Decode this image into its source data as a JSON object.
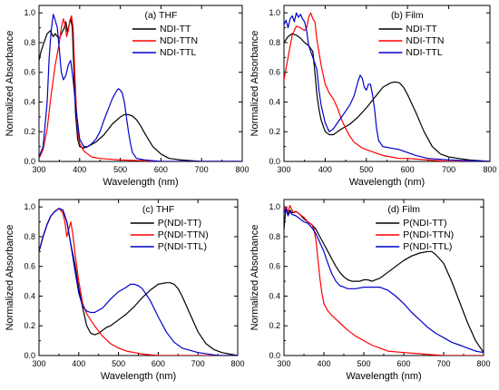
{
  "chart_data": [
    {
      "type": "line",
      "panel_label": "(a) THF",
      "xlabel": "Wavelength (nm)",
      "ylabel": "Normalized Absorbance",
      "xlim": [
        300,
        800
      ],
      "ylim": [
        0.0,
        1.05
      ],
      "xticks": [
        300,
        400,
        500,
        600,
        700,
        800
      ],
      "yticks": [
        0.0,
        0.2,
        0.4,
        0.6,
        0.8,
        1.0
      ],
      "legend_position": "top-right",
      "series": [
        {
          "name": "NDI-TT",
          "color": "#000000",
          "x": [
            300,
            305,
            312,
            320,
            328,
            335,
            340,
            345,
            350,
            357,
            362,
            366,
            370,
            374,
            378,
            382,
            386,
            390,
            395,
            400,
            410,
            420,
            440,
            460,
            480,
            500,
            510,
            520,
            530,
            540,
            550,
            560,
            580,
            600,
            620,
            650,
            700,
            750,
            800
          ],
          "y": [
            0.68,
            0.74,
            0.8,
            0.86,
            0.88,
            0.84,
            0.86,
            0.84,
            0.83,
            0.87,
            0.9,
            0.94,
            0.87,
            0.92,
            0.96,
            0.9,
            0.6,
            0.32,
            0.15,
            0.1,
            0.09,
            0.1,
            0.13,
            0.18,
            0.25,
            0.3,
            0.315,
            0.315,
            0.305,
            0.28,
            0.24,
            0.19,
            0.1,
            0.05,
            0.02,
            0.01,
            0.0,
            0.0,
            0.0
          ]
        },
        {
          "name": "NDI-TTN",
          "color": "#ff0000",
          "x": [
            300,
            310,
            320,
            330,
            340,
            350,
            355,
            360,
            364,
            368,
            372,
            376,
            380,
            384,
            388,
            392,
            396,
            400,
            410,
            420,
            430,
            450,
            500,
            600,
            700,
            800
          ],
          "y": [
            0.02,
            0.08,
            0.22,
            0.45,
            0.65,
            0.8,
            0.9,
            0.96,
            0.92,
            0.84,
            0.88,
            0.95,
            0.98,
            0.9,
            0.6,
            0.35,
            0.2,
            0.12,
            0.07,
            0.05,
            0.03,
            0.02,
            0.01,
            0.0,
            0.0,
            0.0
          ]
        },
        {
          "name": "NDI-TTL",
          "color": "#0000cc",
          "x": [
            300,
            310,
            320,
            325,
            330,
            335,
            340,
            345,
            350,
            355,
            360,
            366,
            372,
            378,
            384,
            390,
            400,
            410,
            420,
            430,
            440,
            450,
            460,
            470,
            480,
            490,
            495,
            500,
            505,
            510,
            515,
            520,
            525,
            530,
            540,
            560,
            600,
            700,
            800
          ],
          "y": [
            0.03,
            0.1,
            0.4,
            0.7,
            0.88,
            0.99,
            0.95,
            0.9,
            0.75,
            0.6,
            0.55,
            0.58,
            0.65,
            0.68,
            0.55,
            0.38,
            0.15,
            0.1,
            0.1,
            0.12,
            0.15,
            0.2,
            0.28,
            0.35,
            0.42,
            0.47,
            0.49,
            0.48,
            0.46,
            0.4,
            0.3,
            0.2,
            0.12,
            0.06,
            0.02,
            0.01,
            0.0,
            0.0,
            0.0
          ]
        }
      ]
    },
    {
      "type": "line",
      "panel_label": "(b) Film",
      "xlabel": "Wavelength (nm)",
      "ylabel": "Normalized Absorbance",
      "xlim": [
        300,
        800
      ],
      "ylim": [
        0.0,
        1.05
      ],
      "xticks": [
        300,
        400,
        500,
        600,
        700,
        800
      ],
      "yticks": [
        0.0,
        0.2,
        0.4,
        0.6,
        0.8,
        1.0
      ],
      "legend_position": "top-right",
      "series": [
        {
          "name": "NDI-TT",
          "color": "#000000",
          "x": [
            300,
            310,
            320,
            330,
            340,
            350,
            360,
            370,
            375,
            380,
            385,
            390,
            400,
            410,
            420,
            430,
            440,
            460,
            480,
            500,
            520,
            540,
            560,
            570,
            580,
            590,
            600,
            620,
            640,
            660,
            680,
            700,
            750,
            800
          ],
          "y": [
            0.8,
            0.84,
            0.86,
            0.85,
            0.83,
            0.8,
            0.78,
            0.74,
            0.6,
            0.45,
            0.35,
            0.28,
            0.2,
            0.18,
            0.18,
            0.2,
            0.22,
            0.25,
            0.3,
            0.36,
            0.43,
            0.5,
            0.53,
            0.535,
            0.53,
            0.5,
            0.45,
            0.33,
            0.2,
            0.1,
            0.05,
            0.03,
            0.01,
            0.0
          ]
        },
        {
          "name": "NDI-TTN",
          "color": "#ff0000",
          "x": [
            300,
            310,
            320,
            330,
            340,
            350,
            355,
            360,
            365,
            370,
            375,
            380,
            390,
            400,
            410,
            420,
            430,
            440,
            450,
            460,
            470,
            480,
            490,
            500,
            520,
            540,
            560,
            580,
            600,
            650,
            700,
            800
          ],
          "y": [
            0.55,
            0.7,
            0.85,
            0.91,
            0.9,
            0.88,
            0.9,
            0.97,
            1.0,
            0.96,
            0.94,
            0.82,
            0.65,
            0.52,
            0.46,
            0.42,
            0.36,
            0.28,
            0.22,
            0.17,
            0.13,
            0.11,
            0.09,
            0.08,
            0.06,
            0.04,
            0.03,
            0.02,
            0.02,
            0.01,
            0.0,
            0.0
          ]
        },
        {
          "name": "NDI-TTL",
          "color": "#0000cc",
          "x": [
            300,
            305,
            310,
            315,
            320,
            325,
            330,
            335,
            340,
            345,
            350,
            355,
            360,
            365,
            370,
            375,
            380,
            385,
            390,
            400,
            410,
            420,
            430,
            440,
            450,
            460,
            470,
            480,
            485,
            490,
            495,
            500,
            505,
            510,
            515,
            520,
            525,
            530,
            540,
            560,
            580,
            600,
            620,
            650,
            700,
            800
          ],
          "y": [
            0.92,
            0.95,
            0.9,
            0.96,
            0.98,
            0.94,
            1.0,
            0.97,
            0.99,
            0.96,
            0.94,
            0.88,
            0.78,
            0.74,
            0.7,
            0.66,
            0.62,
            0.48,
            0.38,
            0.26,
            0.2,
            0.22,
            0.26,
            0.3,
            0.34,
            0.38,
            0.44,
            0.54,
            0.58,
            0.56,
            0.5,
            0.48,
            0.52,
            0.52,
            0.45,
            0.35,
            0.22,
            0.14,
            0.1,
            0.09,
            0.08,
            0.06,
            0.04,
            0.02,
            0.01,
            0.0
          ]
        }
      ]
    },
    {
      "type": "line",
      "panel_label": "(c) THF",
      "xlabel": "Wavelength (nm)",
      "ylabel": "Normalized Absorbance",
      "xlim": [
        300,
        800
      ],
      "ylim": [
        0.0,
        1.05
      ],
      "xticks": [
        300,
        400,
        500,
        600,
        700,
        800
      ],
      "yticks": [
        0.0,
        0.2,
        0.4,
        0.6,
        0.8,
        1.0
      ],
      "legend_position": "top-right",
      "series": [
        {
          "name": "P(NDI-TT)",
          "color": "#000000",
          "x": [
            300,
            310,
            320,
            330,
            340,
            350,
            360,
            370,
            380,
            390,
            400,
            410,
            420,
            430,
            440,
            450,
            460,
            470,
            480,
            500,
            520,
            540,
            560,
            580,
            600,
            620,
            630,
            640,
            650,
            660,
            680,
            700,
            720,
            740,
            760,
            780,
            800
          ],
          "y": [
            0.7,
            0.8,
            0.88,
            0.94,
            0.97,
            0.99,
            0.98,
            0.9,
            0.75,
            0.62,
            0.45,
            0.32,
            0.2,
            0.15,
            0.14,
            0.15,
            0.17,
            0.19,
            0.2,
            0.24,
            0.28,
            0.33,
            0.39,
            0.44,
            0.48,
            0.49,
            0.49,
            0.48,
            0.45,
            0.4,
            0.28,
            0.16,
            0.08,
            0.04,
            0.02,
            0.01,
            0.0
          ]
        },
        {
          "name": "P(NDI-TTN)",
          "color": "#ff0000",
          "x": [
            300,
            310,
            320,
            330,
            340,
            350,
            360,
            365,
            370,
            375,
            380,
            385,
            390,
            400,
            410,
            420,
            430,
            440,
            460,
            480,
            500,
            520,
            540,
            560,
            600,
            700,
            800
          ],
          "y": [
            0.7,
            0.8,
            0.88,
            0.94,
            0.97,
            0.99,
            0.96,
            0.9,
            0.8,
            0.85,
            0.9,
            0.82,
            0.7,
            0.5,
            0.35,
            0.28,
            0.24,
            0.2,
            0.13,
            0.08,
            0.05,
            0.03,
            0.02,
            0.01,
            0.0,
            0.0,
            0.0
          ]
        },
        {
          "name": "P(NDI-TTL)",
          "color": "#0000cc",
          "x": [
            300,
            310,
            320,
            330,
            340,
            350,
            360,
            370,
            380,
            390,
            400,
            410,
            420,
            430,
            440,
            460,
            480,
            500,
            520,
            530,
            540,
            550,
            560,
            580,
            600,
            620,
            640,
            660,
            700,
            750,
            800
          ],
          "y": [
            0.7,
            0.8,
            0.88,
            0.94,
            0.97,
            0.99,
            0.98,
            0.9,
            0.75,
            0.58,
            0.42,
            0.33,
            0.3,
            0.29,
            0.29,
            0.32,
            0.38,
            0.43,
            0.46,
            0.48,
            0.48,
            0.47,
            0.45,
            0.37,
            0.26,
            0.16,
            0.09,
            0.05,
            0.02,
            0.0,
            0.0
          ]
        }
      ]
    },
    {
      "type": "line",
      "panel_label": "(d) Film",
      "xlabel": "Wavelength (nm)",
      "ylabel": "Normalized Absorbance",
      "xlim": [
        300,
        800
      ],
      "ylim": [
        0.0,
        1.05
      ],
      "xticks": [
        300,
        400,
        500,
        600,
        700,
        800
      ],
      "yticks": [
        0.0,
        0.2,
        0.4,
        0.6,
        0.8,
        1.0
      ],
      "legend_position": "top-right",
      "series": [
        {
          "name": "P(NDI-TT)",
          "color": "#000000",
          "x": [
            300,
            305,
            310,
            315,
            320,
            330,
            340,
            350,
            360,
            370,
            380,
            390,
            400,
            410,
            420,
            430,
            440,
            450,
            460,
            470,
            480,
            490,
            500,
            510,
            520,
            540,
            560,
            580,
            600,
            620,
            640,
            660,
            670,
            680,
            700,
            720,
            740,
            760,
            780,
            800
          ],
          "y": [
            0.85,
            1.0,
            0.95,
            0.98,
            0.96,
            0.97,
            0.95,
            0.92,
            0.9,
            0.88,
            0.85,
            0.8,
            0.75,
            0.7,
            0.65,
            0.6,
            0.56,
            0.53,
            0.51,
            0.5,
            0.5,
            0.5,
            0.51,
            0.51,
            0.5,
            0.52,
            0.56,
            0.6,
            0.64,
            0.67,
            0.69,
            0.7,
            0.7,
            0.68,
            0.62,
            0.5,
            0.36,
            0.22,
            0.1,
            0.02
          ]
        },
        {
          "name": "P(NDI-TTN)",
          "color": "#ff0000",
          "x": [
            300,
            305,
            310,
            315,
            320,
            325,
            330,
            340,
            350,
            360,
            370,
            375,
            380,
            385,
            390,
            395,
            400,
            410,
            420,
            440,
            460,
            480,
            500,
            520,
            540,
            560,
            600,
            650,
            700,
            800
          ],
          "y": [
            0.98,
            1.0,
            0.97,
            1.01,
            0.98,
            0.96,
            0.97,
            0.95,
            0.93,
            0.9,
            0.88,
            0.85,
            0.78,
            0.65,
            0.52,
            0.42,
            0.35,
            0.3,
            0.27,
            0.22,
            0.17,
            0.13,
            0.1,
            0.07,
            0.05,
            0.03,
            0.02,
            0.01,
            0.0,
            0.0
          ]
        },
        {
          "name": "P(NDI-TTL)",
          "color": "#0000cc",
          "x": [
            300,
            305,
            310,
            315,
            320,
            330,
            340,
            350,
            360,
            370,
            380,
            390,
            400,
            410,
            420,
            430,
            440,
            450,
            460,
            480,
            500,
            520,
            540,
            550,
            560,
            580,
            600,
            620,
            640,
            660,
            680,
            700,
            720,
            740,
            760,
            780,
            800
          ],
          "y": [
            0.96,
            0.99,
            0.94,
            0.97,
            0.95,
            0.94,
            0.92,
            0.9,
            0.89,
            0.86,
            0.82,
            0.76,
            0.7,
            0.62,
            0.55,
            0.5,
            0.47,
            0.46,
            0.45,
            0.45,
            0.46,
            0.46,
            0.46,
            0.45,
            0.44,
            0.4,
            0.35,
            0.29,
            0.24,
            0.19,
            0.15,
            0.12,
            0.09,
            0.07,
            0.05,
            0.03,
            0.02
          ]
        }
      ]
    }
  ]
}
